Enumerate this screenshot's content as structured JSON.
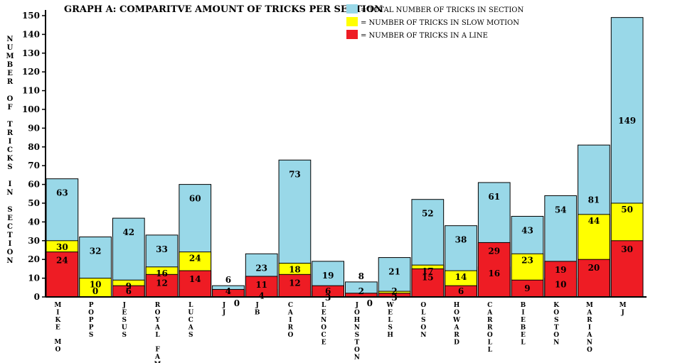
{
  "chart_data": {
    "type": "bar",
    "title": "GRAPH A: COMPARITVE AMOUNT OF TRICKS PER SECTION",
    "ylabel": "NUMBER OF TRICKS IN SECTION",
    "ylim": [
      0,
      150
    ],
    "yticks": [
      0,
      10,
      20,
      30,
      40,
      50,
      60,
      70,
      80,
      90,
      100,
      110,
      120,
      130,
      140,
      150
    ],
    "legend": {
      "placement": "top-right"
    },
    "categories": [
      "MIKE MO",
      "POPPS",
      "JESUS",
      "ROYAL FAM",
      "LUCAS",
      "JJ",
      "JB",
      "CAIRO",
      "LENOCE",
      "JOHNSTON",
      "WELSH",
      "OLSON",
      "HOWARD",
      "CARROLL",
      "BIEBEL",
      "KOSTON",
      "MARIANO",
      "MJ"
    ],
    "series": [
      {
        "name": "= TOTAL NUMBER OF TRICKS IN SECTION",
        "color": "#99d8e8",
        "values": [
          63,
          32,
          42,
          33,
          60,
          6,
          23,
          73,
          19,
          8,
          21,
          52,
          38,
          61,
          43,
          54,
          81,
          149
        ]
      },
      {
        "name": "= NUMBER OF TRICKS IN SLOW MOTION",
        "color": "#ffff00",
        "values": [
          30,
          10,
          9,
          16,
          24,
          0,
          4,
          18,
          3,
          0,
          3,
          17,
          14,
          16,
          23,
          10,
          44,
          50
        ]
      },
      {
        "name": "= NUMBER OF TRICKS IN A LINE",
        "color": "#ee1c24",
        "values": [
          24,
          0,
          6,
          12,
          14,
          4,
          11,
          12,
          6,
          2,
          2,
          15,
          6,
          29,
          9,
          19,
          20,
          30
        ]
      }
    ]
  }
}
